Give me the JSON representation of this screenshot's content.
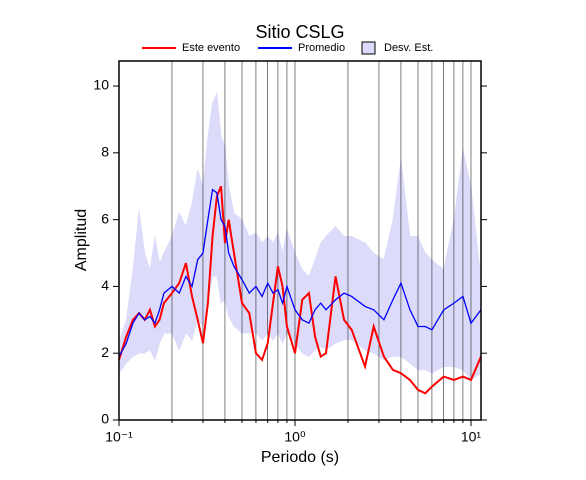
{
  "chart_data": {
    "type": "line",
    "title": "Sitio CSLG",
    "xlabel": "Periodo (s)",
    "ylabel": "Amplitud",
    "xscale": "log",
    "xlim": [
      0.1,
      11.4
    ],
    "ylim": [
      0,
      10.75
    ],
    "xticks": [
      {
        "value": 0.1,
        "label": "10⁻¹"
      },
      {
        "value": 1,
        "label": "10⁰"
      },
      {
        "value": 10,
        "label": "10¹"
      }
    ],
    "xgrid": [
      0.2,
      0.3,
      0.4,
      0.5,
      0.6,
      0.7,
      0.8,
      0.9,
      2,
      3,
      4,
      5,
      6,
      7,
      8,
      9
    ],
    "yticks": [
      0,
      2,
      4,
      6,
      8,
      10
    ],
    "grid": true,
    "x": [
      0.1,
      0.11,
      0.12,
      0.13,
      0.14,
      0.15,
      0.16,
      0.17,
      0.18,
      0.2,
      0.22,
      0.24,
      0.26,
      0.28,
      0.3,
      0.32,
      0.34,
      0.36,
      0.38,
      0.4,
      0.42,
      0.45,
      0.5,
      0.55,
      0.6,
      0.65,
      0.7,
      0.75,
      0.8,
      0.85,
      0.9,
      1.0,
      1.1,
      1.2,
      1.3,
      1.4,
      1.5,
      1.7,
      1.9,
      2.1,
      2.5,
      2.8,
      3.2,
      3.6,
      4.0,
      4.5,
      5.0,
      5.5,
      6.0,
      7.0,
      8.0,
      9.0,
      10,
      11.4
    ],
    "series": [
      {
        "name": "Este evento",
        "color": "#ff0000",
        "values": [
          1.8,
          2.5,
          3.0,
          3.2,
          3.0,
          3.3,
          2.8,
          3.0,
          3.5,
          3.8,
          4.1,
          4.7,
          3.7,
          3.0,
          2.3,
          3.5,
          5.5,
          6.7,
          7.0,
          5.3,
          6.0,
          5.0,
          3.5,
          3.2,
          2.0,
          1.8,
          2.3,
          3.5,
          4.6,
          4.0,
          2.8,
          2.0,
          3.6,
          3.8,
          2.5,
          1.9,
          2.0,
          4.3,
          3.0,
          2.7,
          1.6,
          2.8,
          1.9,
          1.5,
          1.4,
          1.2,
          0.9,
          0.8,
          1.0,
          1.3,
          1.2,
          1.3,
          1.2,
          1.9
        ]
      },
      {
        "name": "Promedio",
        "color": "#0000ff",
        "values": [
          1.9,
          2.3,
          2.9,
          3.2,
          3.0,
          3.1,
          2.9,
          3.3,
          3.8,
          4.0,
          3.8,
          4.3,
          4.0,
          4.8,
          5.0,
          6.0,
          6.9,
          6.8,
          6.0,
          5.8,
          5.0,
          4.6,
          4.2,
          3.8,
          4.0,
          3.7,
          4.1,
          3.8,
          3.9,
          3.5,
          4.0,
          3.3,
          3.0,
          2.9,
          3.3,
          3.5,
          3.3,
          3.6,
          3.8,
          3.7,
          3.4,
          3.3,
          3.0,
          3.6,
          4.1,
          3.3,
          2.8,
          2.8,
          2.7,
          3.3,
          3.5,
          3.7,
          2.9,
          3.3
        ]
      }
    ],
    "band": {
      "name": "Desv. Est.",
      "color": "#dcdcfa",
      "low": [
        1.4,
        1.7,
        1.9,
        2.0,
        2.0,
        2.1,
        1.8,
        2.3,
        2.6,
        2.6,
        2.1,
        2.6,
        2.4,
        3.0,
        2.8,
        3.6,
        4.3,
        4.3,
        3.5,
        3.6,
        3.1,
        2.8,
        2.6,
        2.6,
        2.6,
        2.4,
        2.6,
        2.4,
        2.6,
        2.3,
        2.6,
        2.3,
        2.0,
        1.9,
        2.1,
        2.2,
        2.1,
        2.3,
        2.4,
        2.4,
        2.1,
        2.0,
        1.8,
        1.9,
        1.9,
        1.7,
        1.5,
        1.5,
        1.4,
        1.6,
        1.6,
        1.5,
        1.2,
        1.4
      ],
      "high": [
        2.3,
        3.0,
        4.5,
        6.3,
        5.0,
        4.5,
        5.5,
        4.7,
        5.0,
        5.5,
        6.2,
        5.8,
        6.5,
        7.5,
        7.0,
        8.5,
        9.5,
        9.8,
        8.5,
        8.2,
        7.0,
        6.2,
        6.0,
        5.5,
        5.6,
        5.3,
        5.5,
        5.3,
        5.6,
        5.0,
        5.7,
        5.0,
        4.5,
        4.3,
        4.8,
        5.3,
        5.5,
        5.8,
        5.5,
        5.5,
        5.3,
        5.0,
        4.8,
        6.0,
        7.8,
        5.5,
        5.5,
        5.0,
        4.8,
        4.5,
        6.0,
        8.1,
        7.0,
        4.2
      ]
    }
  }
}
